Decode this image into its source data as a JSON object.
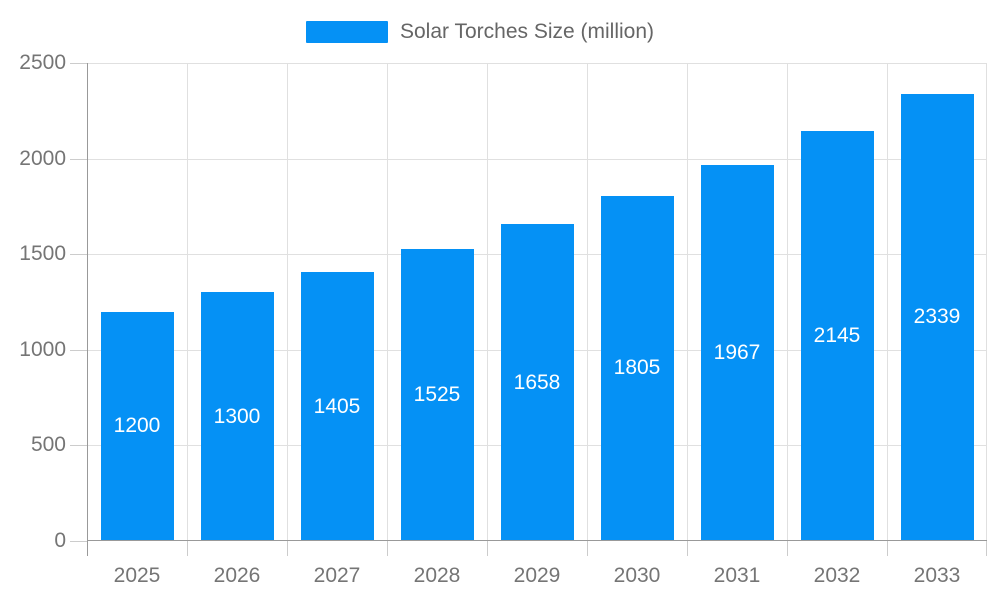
{
  "chart_data": {
    "type": "bar",
    "title": "Solar Torches Size (million)",
    "series_name": "Solar Torches Size (million)",
    "categories": [
      "2025",
      "2026",
      "2027",
      "2028",
      "2029",
      "2030",
      "2031",
      "2032",
      "2033"
    ],
    "values": [
      1200,
      1300,
      1405,
      1525,
      1658,
      1805,
      1967,
      2145,
      2339
    ],
    "xlabel": "",
    "ylabel": "",
    "ylim": [
      0,
      2500
    ],
    "yticks": [
      0,
      500,
      1000,
      1500,
      2000,
      2500
    ],
    "grid": true,
    "legend_position": "top-center",
    "value_label_position": "inside-center"
  },
  "colors": {
    "bar": "#0591f5",
    "grid": "#e0e0e0",
    "axis": "#999999",
    "tick": "#cccccc",
    "axis_label": "#757575",
    "value_label": "#ffffff",
    "legend_text": "#666666",
    "background": "#ffffff"
  }
}
